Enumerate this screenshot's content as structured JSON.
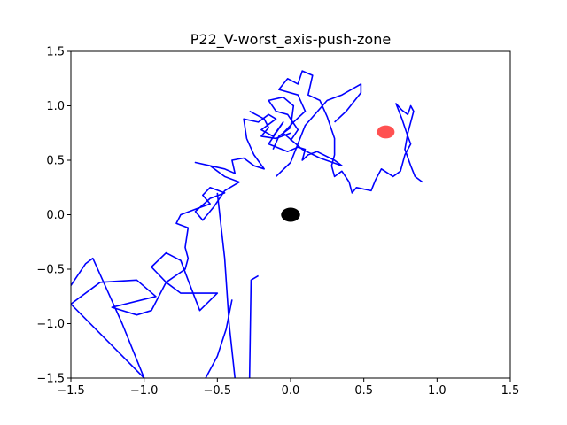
{
  "chart_data": {
    "type": "line",
    "title": "P22_V-worst_axis-push-zone",
    "xlabel": "",
    "ylabel": "",
    "xlim": [
      -1.5,
      1.5
    ],
    "ylim": [
      -1.5,
      1.5
    ],
    "x_ticks": [
      -1.5,
      -1.0,
      -0.5,
      0.0,
      0.5,
      1.0,
      1.5
    ],
    "x_tick_labels": [
      "−1.5",
      "−1.0",
      "−0.5",
      "0.0",
      "0.5",
      "1.0",
      "1.5"
    ],
    "y_ticks": [
      -1.5,
      -1.0,
      -0.5,
      0.0,
      0.5,
      1.0,
      1.5
    ],
    "y_tick_labels": [
      "−1.5",
      "−1.0",
      "−0.5",
      "0.0",
      "0.5",
      "1.0",
      "1.5"
    ],
    "grid": false,
    "series": [
      {
        "color": "#0000ff",
        "points": [
          [
            -1.5,
            -0.65
          ],
          [
            -1.4,
            -0.45
          ],
          [
            -1.35,
            -0.4
          ],
          [
            -1.15,
            -1.0
          ],
          [
            -1.0,
            -1.5
          ],
          [
            -1.5,
            -0.82
          ],
          [
            -1.3,
            -0.62
          ],
          [
            -1.05,
            -0.6
          ],
          [
            -0.92,
            -0.75
          ],
          [
            -1.22,
            -0.85
          ],
          [
            -1.05,
            -0.92
          ],
          [
            -0.95,
            -0.88
          ],
          [
            -0.85,
            -0.62
          ],
          [
            -0.95,
            -0.48
          ],
          [
            -0.85,
            -0.35
          ],
          [
            -0.75,
            -0.42
          ],
          [
            -0.7,
            -0.6
          ],
          [
            -0.62,
            -0.88
          ],
          [
            -0.5,
            -0.72
          ],
          [
            -0.75,
            -0.72
          ],
          [
            -0.85,
            -0.62
          ],
          [
            -0.72,
            -0.5
          ],
          [
            -0.7,
            -0.4
          ],
          [
            -0.72,
            -0.3
          ],
          [
            -0.7,
            -0.12
          ],
          [
            -0.78,
            -0.08
          ],
          [
            -0.75,
            0.0
          ],
          [
            -0.65,
            0.05
          ],
          [
            -0.55,
            0.1
          ],
          [
            -0.6,
            0.18
          ],
          [
            -0.55,
            0.25
          ],
          [
            -0.45,
            0.2
          ],
          [
            -0.55,
            0.15
          ],
          [
            -0.65,
            0.03
          ],
          [
            -0.6,
            -0.05
          ],
          [
            -0.52,
            0.08
          ],
          [
            -0.45,
            0.22
          ],
          [
            -0.35,
            0.3
          ],
          [
            -0.45,
            0.35
          ],
          [
            -0.55,
            0.45
          ],
          [
            -0.65,
            0.48
          ],
          [
            -0.45,
            0.42
          ],
          [
            -0.38,
            0.38
          ],
          [
            -0.4,
            0.5
          ],
          [
            -0.32,
            0.52
          ],
          [
            -0.25,
            0.45
          ],
          [
            -0.18,
            0.42
          ],
          [
            -0.25,
            0.55
          ],
          [
            -0.3,
            0.7
          ],
          [
            -0.32,
            0.88
          ],
          [
            -0.22,
            0.85
          ],
          [
            -0.15,
            0.92
          ],
          [
            -0.1,
            0.88
          ],
          [
            -0.2,
            0.78
          ],
          [
            -0.12,
            0.72
          ],
          [
            -0.05,
            0.85
          ],
          [
            -0.15,
            0.65
          ],
          [
            -0.02,
            0.58
          ],
          [
            0.05,
            0.62
          ],
          [
            0.1,
            0.6
          ],
          [
            0.08,
            0.5
          ],
          [
            0.12,
            0.55
          ],
          [
            0.18,
            0.58
          ],
          [
            0.3,
            0.5
          ],
          [
            0.35,
            0.45
          ],
          [
            0.2,
            0.52
          ],
          [
            0.08,
            0.6
          ],
          [
            -0.05,
            0.75
          ],
          [
            0.02,
            0.85
          ],
          [
            0.1,
            0.95
          ],
          [
            0.05,
            1.1
          ],
          [
            -0.08,
            1.15
          ],
          [
            -0.02,
            1.25
          ],
          [
            0.05,
            1.2
          ],
          [
            0.08,
            1.32
          ],
          [
            0.15,
            1.28
          ],
          [
            0.12,
            1.1
          ],
          [
            0.2,
            1.05
          ],
          [
            0.25,
            0.9
          ],
          [
            0.3,
            0.7
          ],
          [
            0.3,
            0.55
          ],
          [
            0.28,
            0.45
          ],
          [
            0.3,
            0.35
          ],
          [
            0.35,
            0.4
          ],
          [
            0.4,
            0.3
          ],
          [
            0.42,
            0.2
          ],
          [
            0.45,
            0.25
          ],
          [
            0.55,
            0.22
          ],
          [
            0.58,
            0.32
          ],
          [
            0.62,
            0.42
          ],
          [
            0.7,
            0.35
          ],
          [
            0.75,
            0.4
          ],
          [
            0.78,
            0.55
          ],
          [
            0.82,
            0.65
          ],
          [
            0.8,
            0.72
          ],
          [
            0.76,
            0.88
          ],
          [
            0.72,
            1.02
          ],
          [
            0.76,
            0.96
          ],
          [
            0.8,
            0.92
          ],
          [
            0.82,
            1.0
          ],
          [
            0.84,
            0.95
          ],
          [
            0.8,
            0.75
          ],
          [
            0.78,
            0.6
          ],
          [
            0.82,
            0.45
          ],
          [
            0.85,
            0.35
          ],
          [
            0.9,
            0.3
          ]
        ]
      },
      {
        "color": "#0000ff",
        "points": [
          [
            -0.5,
            0.2
          ],
          [
            -0.45,
            -0.4
          ],
          [
            -0.42,
            -1.0
          ],
          [
            -0.38,
            -1.5
          ]
        ]
      },
      {
        "color": "#0000ff",
        "points": [
          [
            -0.28,
            -1.5
          ],
          [
            -0.27,
            -0.6
          ],
          [
            -0.22,
            -0.56
          ]
        ]
      },
      {
        "color": "#0000ff",
        "points": [
          [
            -0.4,
            -0.78
          ],
          [
            -0.44,
            -1.05
          ],
          [
            -0.5,
            -1.3
          ],
          [
            -0.58,
            -1.5
          ]
        ]
      },
      {
        "color": "#0000ff",
        "points": [
          [
            -0.1,
            0.35
          ],
          [
            0.0,
            0.48
          ],
          [
            0.1,
            0.82
          ],
          [
            0.25,
            1.05
          ],
          [
            0.35,
            1.1
          ],
          [
            0.48,
            1.2
          ],
          [
            0.48,
            1.12
          ],
          [
            0.38,
            0.95
          ],
          [
            0.3,
            0.85
          ]
        ]
      },
      {
        "color": "#0000ff",
        "points": [
          [
            -0.12,
            0.6
          ],
          [
            -0.08,
            0.72
          ],
          [
            0.0,
            0.8
          ],
          [
            0.02,
            1.0
          ],
          [
            -0.05,
            1.08
          ],
          [
            -0.15,
            1.05
          ],
          [
            -0.1,
            0.95
          ],
          [
            -0.02,
            0.92
          ],
          [
            0.05,
            0.78
          ],
          [
            0.0,
            0.68
          ]
        ]
      },
      {
        "color": "#0000ff",
        "points": [
          [
            -0.28,
            0.95
          ],
          [
            -0.18,
            0.88
          ],
          [
            -0.15,
            0.8
          ],
          [
            -0.2,
            0.72
          ],
          [
            -0.1,
            0.7
          ],
          [
            0.0,
            0.75
          ]
        ]
      }
    ],
    "markers": [
      {
        "x": 0.0,
        "y": 0.0,
        "color": "#000000",
        "rx_data": 0.065,
        "ry_data": 0.065
      },
      {
        "x": 0.65,
        "y": 0.76,
        "color": "#ff3333",
        "rx_data": 0.06,
        "ry_data": 0.06,
        "opacity": 0.85
      }
    ]
  }
}
